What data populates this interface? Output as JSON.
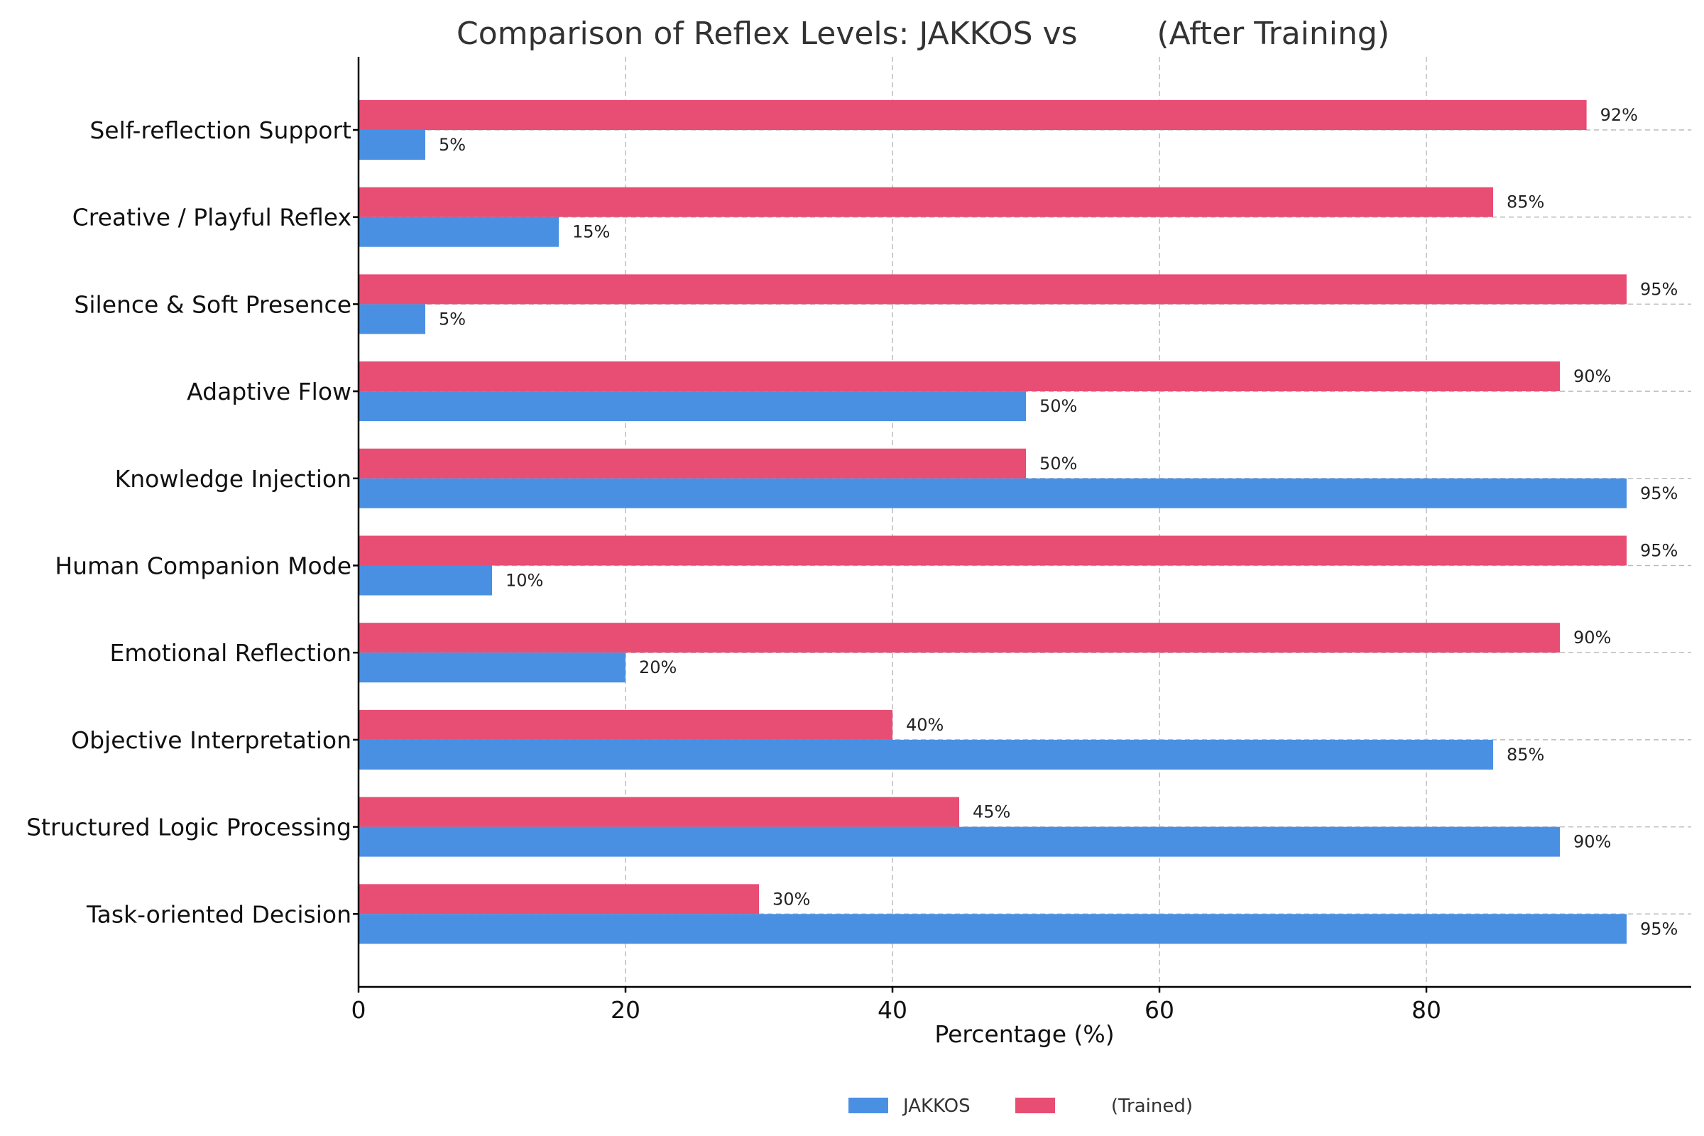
{
  "chart_data": {
    "type": "bar",
    "orientation": "horizontal",
    "title": "Comparison of Reflex Levels: JAKKOS vs        (After Training)",
    "xlabel": "Percentage (%)",
    "ylabel": "",
    "xlim": [
      0,
      100
    ],
    "xticks": [
      "0",
      "20",
      "40",
      "60",
      "80"
    ],
    "categories": [
      "Self-reflection Support",
      "Creative / Playful Reflex",
      "Silence & Soft Presence",
      "Adaptive Flow",
      "Knowledge Injection",
      "Human Companion Mode",
      "Emotional Reflection",
      "Objective Interpretation",
      "Structured Logic Processing",
      "Task-oriented Decision"
    ],
    "series": [
      {
        "name": "JAKKOS",
        "color": "#4a90e2",
        "values": [
          5,
          15,
          5,
          50,
          95,
          10,
          20,
          85,
          90,
          95
        ],
        "labels": [
          "5%",
          "15%",
          "5%",
          "50%",
          "95%",
          "10%",
          "20%",
          "85%",
          "90%",
          "95%"
        ]
      },
      {
        "name": "       (Trained)",
        "color": "#e84d74",
        "values": [
          92,
          85,
          95,
          90,
          50,
          95,
          90,
          40,
          45,
          30
        ],
        "labels": [
          "92%",
          "85%",
          "95%",
          "90%",
          "50%",
          "95%",
          "90%",
          "40%",
          "45%",
          "30%"
        ]
      }
    ],
    "grid": true,
    "legend_position": "bottom-center"
  }
}
